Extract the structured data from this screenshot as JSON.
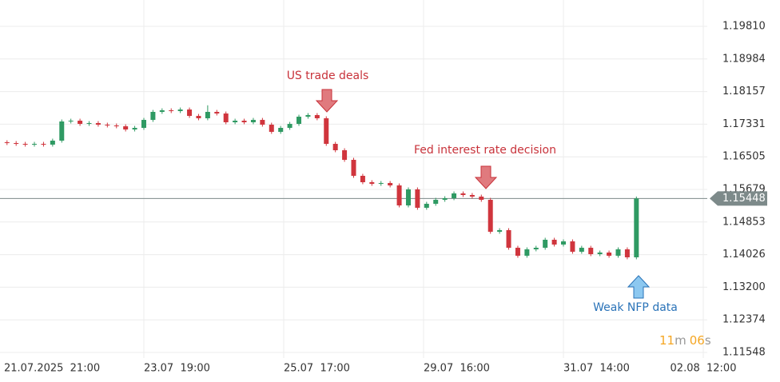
{
  "chart_data": {
    "type": "candlestick",
    "x": [
      1,
      4,
      7,
      10,
      13,
      16,
      19,
      22,
      25,
      28,
      31,
      34,
      37,
      40,
      43,
      46,
      49,
      52,
      55,
      58,
      61,
      64,
      67,
      70,
      73,
      76,
      79,
      82,
      85,
      88,
      91,
      94,
      97,
      100,
      103,
      106,
      109,
      112,
      115,
      118,
      121,
      124,
      127,
      130,
      133,
      136,
      139,
      142,
      145,
      148,
      151,
      154,
      157,
      160,
      163,
      166,
      169,
      172,
      175,
      178,
      181,
      184,
      187,
      190,
      193,
      196,
      199,
      202,
      205,
      208
    ],
    "open": [
      1.16873,
      1.16853,
      1.16833,
      1.16813,
      1.16833,
      1.16813,
      1.16914,
      1.174,
      1.1742,
      1.17339,
      1.17359,
      1.17319,
      1.17299,
      1.17278,
      1.17197,
      1.17238,
      1.1744,
      1.17643,
      1.17683,
      1.17663,
      1.17703,
      1.17541,
      1.17481,
      1.17643,
      1.17602,
      1.1738,
      1.1742,
      1.1738,
      1.1744,
      1.17319,
      1.17137,
      1.17238,
      1.17339,
      1.17521,
      1.17562,
      1.17481,
      1.16833,
      1.16671,
      1.16428,
      1.16023,
      1.15861,
      1.1582,
      1.15841,
      1.1578,
      1.15273,
      1.15679,
      1.15213,
      1.15314,
      1.15415,
      1.15456,
      1.15577,
      1.15537,
      1.15496,
      1.15415,
      1.14605,
      1.14646,
      1.142,
      1.13998,
      1.1416,
      1.142,
      1.14403,
      1.14281,
      1.14362,
      1.14099,
      1.142,
      1.14038,
      1.14079,
      1.13998,
      1.1416,
      1.13958
    ],
    "high": [
      1.16923,
      1.16903,
      1.16883,
      1.16883,
      1.16883,
      1.16964,
      1.1745,
      1.1747,
      1.1747,
      1.17409,
      1.17409,
      1.17369,
      1.17349,
      1.17328,
      1.17288,
      1.1749,
      1.17693,
      1.17733,
      1.17733,
      1.17753,
      1.17753,
      1.17591,
      1.1781,
      1.17693,
      1.17652,
      1.1747,
      1.1747,
      1.1749,
      1.1749,
      1.17369,
      1.17288,
      1.17389,
      1.17571,
      1.17612,
      1.17612,
      1.17531,
      1.16883,
      1.16721,
      1.16478,
      1.16073,
      1.15911,
      1.15891,
      1.15891,
      1.1583,
      1.15729,
      1.15729,
      1.15364,
      1.15465,
      1.15506,
      1.15627,
      1.15627,
      1.15587,
      1.15546,
      1.15465,
      1.14696,
      1.14696,
      1.1425,
      1.1421,
      1.1425,
      1.14453,
      1.14453,
      1.14412,
      1.14412,
      1.1425,
      1.1425,
      1.14129,
      1.14129,
      1.1421,
      1.1421,
      1.15498
    ],
    "low": [
      1.16803,
      1.16783,
      1.16763,
      1.16763,
      1.16763,
      1.16763,
      1.16864,
      1.1735,
      1.17289,
      1.17289,
      1.17269,
      1.17249,
      1.17228,
      1.17147,
      1.17147,
      1.17188,
      1.1739,
      1.17593,
      1.17613,
      1.17613,
      1.17491,
      1.17431,
      1.17431,
      1.17552,
      1.1733,
      1.1733,
      1.1733,
      1.1733,
      1.17269,
      1.17087,
      1.17087,
      1.17188,
      1.17289,
      1.17471,
      1.17431,
      1.16783,
      1.16621,
      1.16378,
      1.15973,
      1.15811,
      1.1577,
      1.1577,
      1.1573,
      1.15223,
      1.15223,
      1.15163,
      1.15163,
      1.15264,
      1.15365,
      1.15406,
      1.15487,
      1.15446,
      1.15365,
      1.14555,
      1.14555,
      1.1415,
      1.13948,
      1.13948,
      1.1411,
      1.1415,
      1.14231,
      1.14231,
      1.14049,
      1.14049,
      1.13988,
      1.13988,
      1.13948,
      1.13948,
      1.13908,
      1.13908
    ],
    "close": [
      1.16853,
      1.16833,
      1.16813,
      1.16833,
      1.16813,
      1.16914,
      1.174,
      1.1742,
      1.17339,
      1.17359,
      1.17319,
      1.17299,
      1.17278,
      1.17197,
      1.17238,
      1.1744,
      1.17643,
      1.17683,
      1.17663,
      1.17703,
      1.17541,
      1.17481,
      1.17643,
      1.17602,
      1.1738,
      1.1742,
      1.1738,
      1.1744,
      1.17319,
      1.17137,
      1.17238,
      1.17339,
      1.17521,
      1.17562,
      1.17481,
      1.16833,
      1.16671,
      1.16428,
      1.16023,
      1.15861,
      1.1582,
      1.15841,
      1.1578,
      1.15273,
      1.15679,
      1.15213,
      1.15314,
      1.15415,
      1.15456,
      1.15577,
      1.15537,
      1.15496,
      1.15415,
      1.14605,
      1.14646,
      1.142,
      1.13998,
      1.1416,
      1.142,
      1.14403,
      1.14281,
      1.14362,
      1.14099,
      1.142,
      1.14038,
      1.14079,
      1.13998,
      1.1416,
      1.13958,
      1.15448
    ],
    "up_color": "#2f9a63",
    "down_color": "#d0353d",
    "xlim": [
      -1.31,
      231.31
    ],
    "xticks": [
      {
        "value": 0,
        "label": "21.07.2025  21:00"
      },
      {
        "value": 46,
        "label": "23.07  19:00"
      },
      {
        "value": 92,
        "label": "25.07  17:00"
      },
      {
        "value": 138,
        "label": "29.07  16:00"
      },
      {
        "value": 184,
        "label": "31.07  14:00"
      },
      {
        "value": 230,
        "label": "02.08  12:00"
      }
    ],
    "ylim": [
      1.11406,
      1.20478
    ],
    "yticks": [
      {
        "value": 1.1981,
        "label": "1.19810"
      },
      1.18984,
      1.18157,
      1.17331,
      1.16505,
      1.15679,
      1.14853,
      1.14026,
      {
        "value": 1.132,
        "label": "1.13200"
      },
      1.12374,
      1.11548
    ],
    "grid": true,
    "last_price": 1.15448,
    "annotations": [
      "US trade deals",
      "Fed interest rate decision",
      "Weak NFP data"
    ]
  },
  "countdown": {
    "minutes": "11",
    "minutes_unit": "m",
    "seconds": "06",
    "seconds_unit": "s"
  }
}
